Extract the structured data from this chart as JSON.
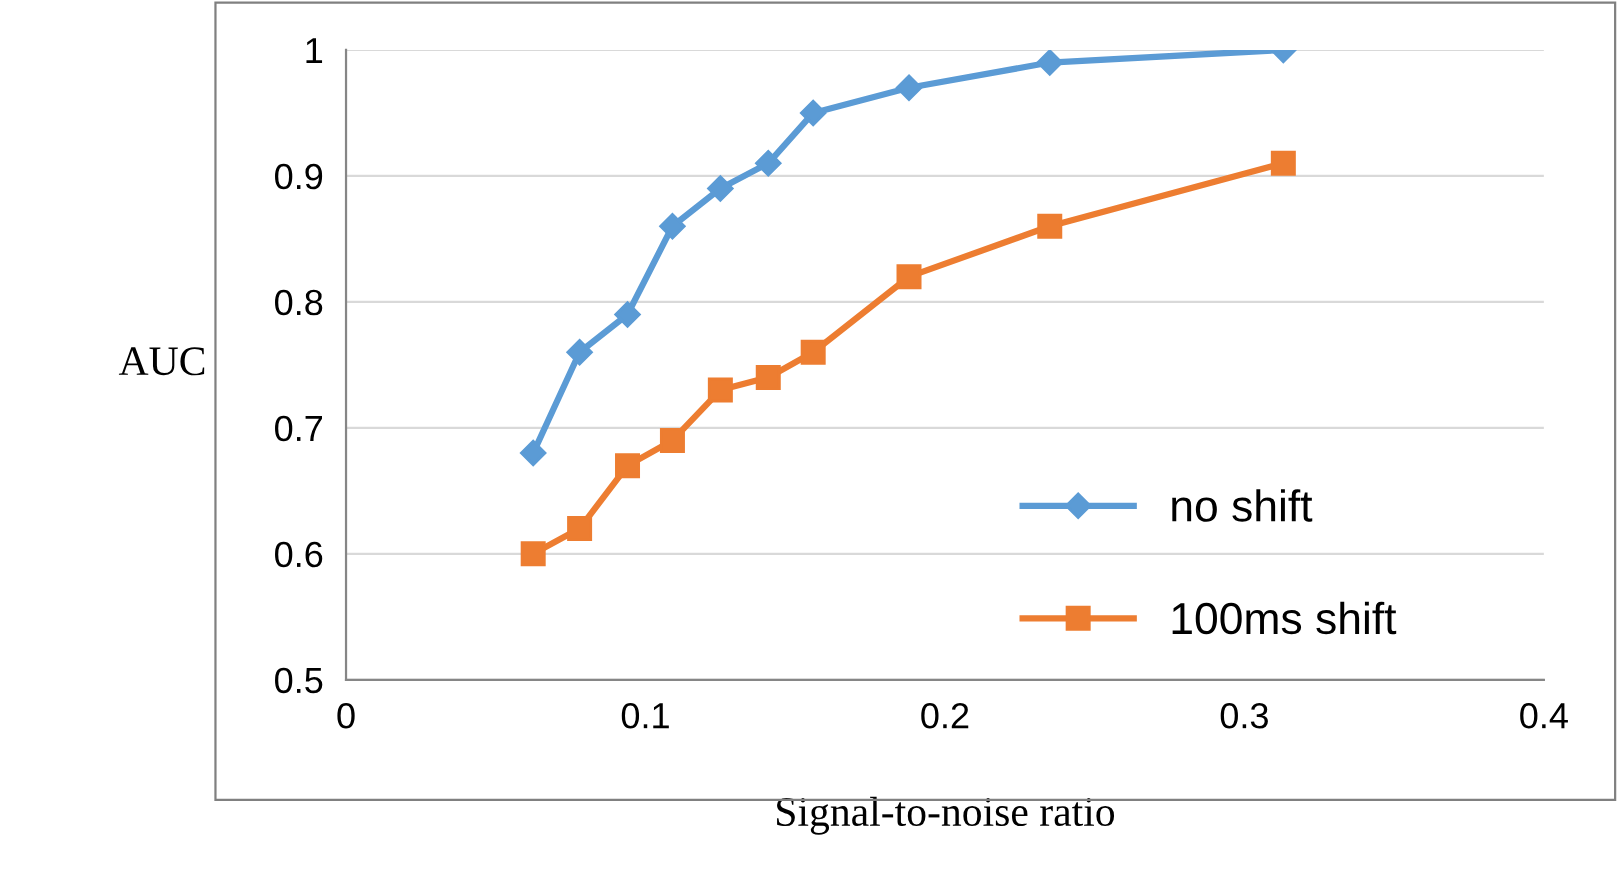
{
  "chart_data": {
    "type": "line",
    "xlabel": "Signal-to-noise ratio",
    "ylabel": "AUC",
    "series": [
      {
        "name": "no shift",
        "color": "#5b9bd5",
        "marker": "diamond",
        "x": [
          0.0625,
          0.078,
          0.094,
          0.109,
          0.125,
          0.141,
          0.156,
          0.188,
          0.235,
          0.313
        ],
        "values": [
          0.68,
          0.76,
          0.79,
          0.86,
          0.89,
          0.91,
          0.95,
          0.97,
          0.99,
          1.0
        ]
      },
      {
        "name": "100ms shift",
        "color": "#ed7d31",
        "marker": "square",
        "x": [
          0.0625,
          0.078,
          0.094,
          0.109,
          0.125,
          0.141,
          0.156,
          0.188,
          0.235,
          0.313
        ],
        "values": [
          0.6,
          0.62,
          0.67,
          0.69,
          0.73,
          0.74,
          0.76,
          0.82,
          0.86,
          0.91
        ]
      }
    ],
    "xlim": [
      0,
      0.4
    ],
    "xticks": [
      0,
      0.1,
      0.2,
      0.3,
      0.4
    ],
    "ylim": [
      0.5,
      1
    ],
    "yticks": [
      0.5,
      0.6,
      0.7,
      0.8,
      0.9,
      {
        "value": 1,
        "label": "1"
      }
    ],
    "grid": "y",
    "legend": "bottom right",
    "line_style": "solid"
  }
}
